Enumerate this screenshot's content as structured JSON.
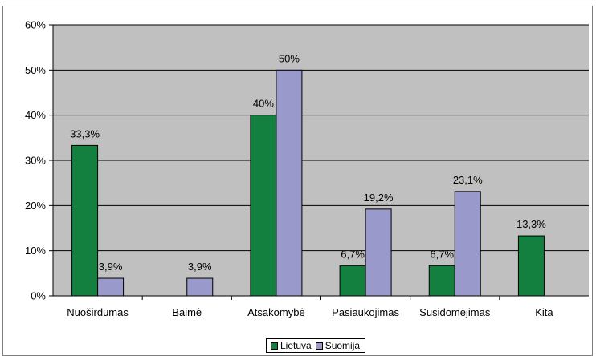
{
  "chart_data": {
    "type": "bar",
    "title": "",
    "xlabel": "",
    "ylabel": "",
    "ylim": [
      0,
      60
    ],
    "yticks": [
      "0%",
      "10%",
      "20%",
      "30%",
      "40%",
      "50%",
      "60%"
    ],
    "grid": true,
    "legend_position": "bottom",
    "categories": [
      "Nuoširdumas",
      "Baimė",
      "Atsakomybė",
      "Pasiaukojimas",
      "Susidomėjimas",
      "Kita"
    ],
    "series": [
      {
        "name": "Lietuva",
        "color": "#138040",
        "values": [
          33.3,
          null,
          40,
          6.7,
          6.7,
          13.3
        ],
        "labels": [
          "33,3%",
          "",
          "40%",
          "6,7%",
          "6,7%",
          "13,3%"
        ]
      },
      {
        "name": "Suomija",
        "color": "#9999cc",
        "values": [
          3.9,
          3.9,
          50,
          19.2,
          23.1,
          null
        ],
        "labels": [
          "3,9%",
          "3,9%",
          "50%",
          "19,2%",
          "23,1%",
          ""
        ]
      }
    ]
  }
}
